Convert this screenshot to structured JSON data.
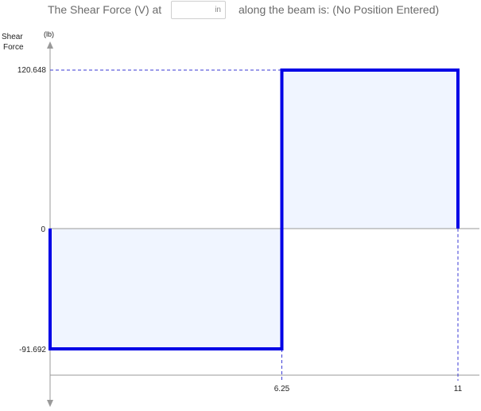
{
  "query": {
    "prefix": "The Shear Force (V) at",
    "input_value": "",
    "unit": "in",
    "suffix": "along the beam is: (No Position Entered)"
  },
  "chart_data": {
    "type": "line",
    "ylabel_line1": "Shear",
    "ylabel_line2": "Force",
    "yunit": "(lb)",
    "x_ticks": [
      "6.25",
      "11"
    ],
    "y_ticks": [
      "120.648",
      "0",
      "-91.692"
    ],
    "series": [
      {
        "x": [
          0,
          0,
          6.25,
          6.25,
          11,
          11
        ],
        "y": [
          0,
          -91.692,
          -91.692,
          120.648,
          120.648,
          0
        ]
      }
    ],
    "xlim": [
      0,
      11
    ],
    "ylim": [
      -91.692,
      120.648
    ],
    "colors": {
      "line": "#0000e6",
      "fill": "#f0f5ff",
      "axis": "#9a9a9a",
      "guide": "#3a3ad6"
    }
  }
}
